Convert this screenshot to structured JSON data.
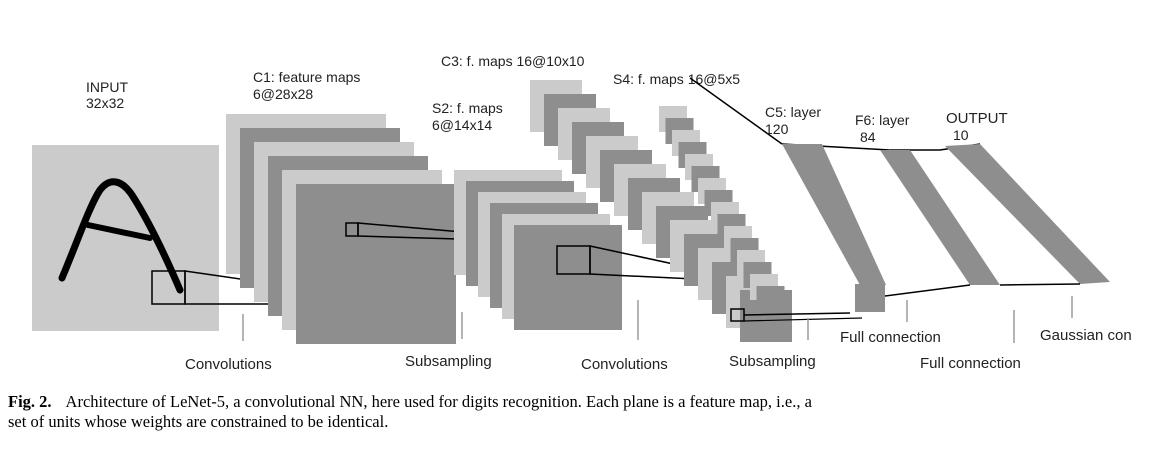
{
  "labels": {
    "input": [
      "INPUT",
      "32x32"
    ],
    "c1": [
      "C1: feature maps",
      "6@28x28"
    ],
    "s2": [
      "S2: f. maps",
      "6@14x14"
    ],
    "c3": [
      "C3: f. maps 16@10x10"
    ],
    "s4": [
      "S4: f. maps 16@5x5"
    ],
    "c5": [
      "C5: layer",
      "120"
    ],
    "f6": [
      "F6: layer",
      "84"
    ],
    "output": [
      "OUTPUT",
      "10"
    ]
  },
  "operations": {
    "convolutions_1": "Convolutions",
    "subsampling_1": "Subsampling",
    "convolutions_2": "Convolutions",
    "subsampling_2": "Subsampling",
    "full_connection_1": "Full connection",
    "full_connection_2": "Full connection",
    "gaussian": "Gaussian con"
  },
  "caption": {
    "figure_label": "Fig. 2.",
    "text": "Architecture of LeNet-5, a convolutional NN, here used for digits recognition. Each plane is a feature map, i.e., a set of units whose weights are constrained to be identical."
  },
  "colors": {
    "light_plane": "#cbcbcb",
    "dark_plane": "#8e8e8e",
    "stroke": "#000000"
  }
}
